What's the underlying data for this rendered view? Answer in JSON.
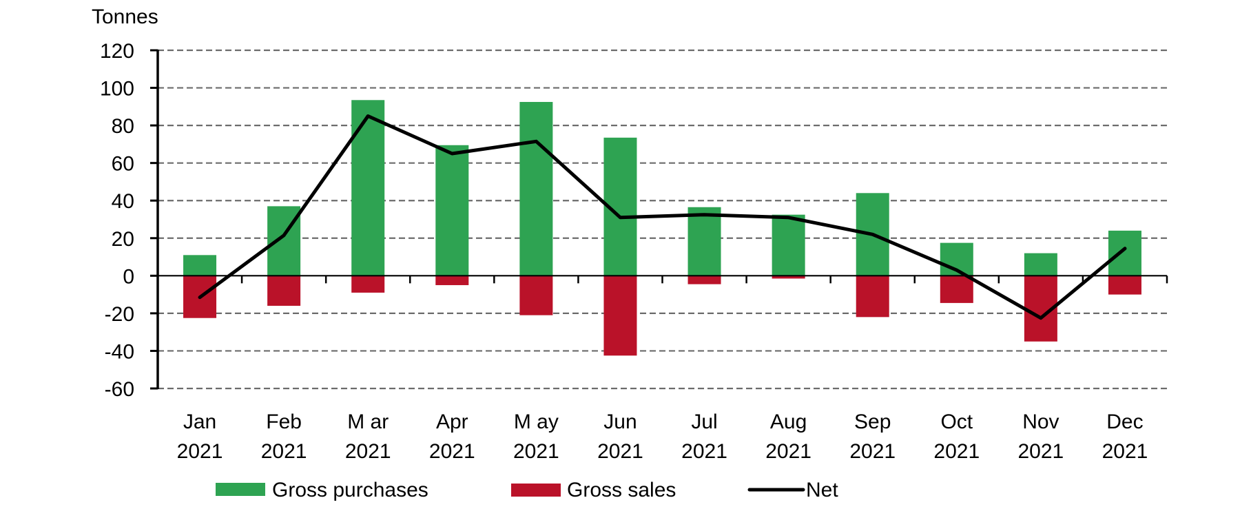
{
  "chart_data": {
    "type": "bar",
    "stacked": true,
    "title": "",
    "ylabel": "Tonnes",
    "xlabel": "",
    "ylim": [
      -60,
      120
    ],
    "yticks": [
      120,
      100,
      80,
      60,
      40,
      20,
      0,
      -20,
      -40,
      -60
    ],
    "ytick_labels": [
      "120",
      "100",
      "80",
      "60",
      "40",
      "20",
      "0",
      "-20",
      "-40",
      "-60"
    ],
    "grid": true,
    "categories": [
      [
        "Jan",
        "2021"
      ],
      [
        "Feb",
        "2021"
      ],
      [
        "M ar",
        "2021"
      ],
      [
        "Apr",
        "2021"
      ],
      [
        "M ay",
        "2021"
      ],
      [
        "Jun",
        "2021"
      ],
      [
        "Jul",
        "2021"
      ],
      [
        "Aug",
        "2021"
      ],
      [
        "Sep",
        "2021"
      ],
      [
        "Oct",
        "2021"
      ],
      [
        "Nov",
        "2021"
      ],
      [
        "Dec",
        "2021"
      ]
    ],
    "series": [
      {
        "name": "Gross purchases",
        "kind": "bar",
        "color": "#2EA352",
        "values": [
          11,
          37,
          93.5,
          69.5,
          92.5,
          73.5,
          36.5,
          32.5,
          44,
          17.5,
          12,
          24
        ]
      },
      {
        "name": "Gross sales",
        "kind": "bar",
        "color": "#BA1229",
        "values": [
          -22.5,
          -16,
          -9,
          -5,
          -21,
          -42.5,
          -4.5,
          -1.5,
          -22,
          -14.5,
          -35,
          -10
        ]
      },
      {
        "name": "Net",
        "kind": "line",
        "color": "#000000",
        "values": [
          -11.5,
          21.5,
          85,
          65,
          71.5,
          31,
          32.5,
          31,
          22,
          3,
          -22.5,
          14.5
        ]
      }
    ],
    "legend_position": "bottom"
  }
}
